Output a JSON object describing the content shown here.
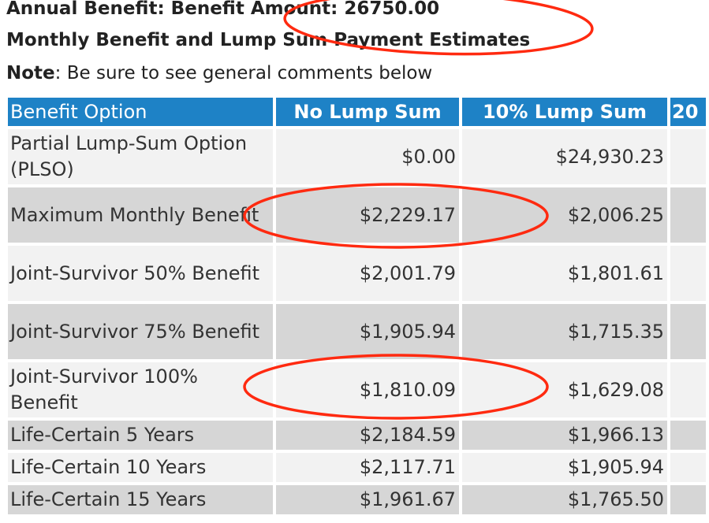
{
  "header": {
    "annual_label": "Annual Benefit: Benefit Amount: 26750.00",
    "subtitle": "Monthly Benefit and Lump Sum Payment Estimates",
    "note_label": "Note",
    "note_text": ": Be sure to see general comments below"
  },
  "table": {
    "columns": [
      "Benefit Option",
      "No Lump Sum",
      "10% Lump Sum",
      "20"
    ],
    "rows": [
      {
        "option": "Partial Lump-Sum Option (PLSO)",
        "no_lump": "$0.00",
        "ten_lump": "$24,930.23"
      },
      {
        "option": "Maximum Monthly Benefit",
        "no_lump": "$2,229.17",
        "ten_lump": "$2,006.25"
      },
      {
        "option": "Joint-Survivor 50% Benefit",
        "no_lump": "$2,001.79",
        "ten_lump": "$1,801.61"
      },
      {
        "option": "Joint-Survivor 75% Benefit",
        "no_lump": "$1,905.94",
        "ten_lump": "$1,715.35"
      },
      {
        "option": "Joint-Survivor 100% Benefit",
        "no_lump": "$1,810.09",
        "ten_lump": "$1,629.08"
      },
      {
        "option": "Life-Certain 5 Years",
        "no_lump": "$2,184.59",
        "ten_lump": "$1,966.13"
      },
      {
        "option": "Life-Certain 10 Years",
        "no_lump": "$2,117.71",
        "ten_lump": "$1,905.94"
      },
      {
        "option": "Life-Certain 15 Years",
        "no_lump": "$1,961.67",
        "ten_lump": "$1,765.50"
      }
    ]
  },
  "colors": {
    "header_bg": "#1e82c6",
    "row_light": "#f2f2f2",
    "row_dark": "#d6d6d6",
    "annotation": "#ff2a10"
  }
}
